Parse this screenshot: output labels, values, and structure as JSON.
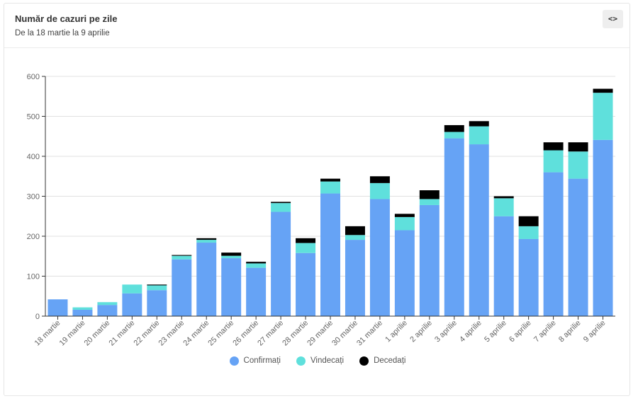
{
  "header": {
    "title": "Număr de cazuri pe zile",
    "subtitle": "De la 18 martie la 9 aprilie",
    "embed_label": "<>"
  },
  "colors": {
    "confirmati": "#66a3f5",
    "vindecati": "#5fe0dc",
    "decedati": "#000000",
    "grid": "#e0e0e0",
    "axis": "#333333"
  },
  "chart_data": {
    "type": "bar",
    "stacked": true,
    "title": "Număr de cazuri pe zile",
    "subtitle": "De la 18 martie la 9 aprilie",
    "xlabel": "",
    "ylabel": "",
    "ylim": [
      0,
      600
    ],
    "yticks": [
      0,
      100,
      200,
      300,
      400,
      500,
      600
    ],
    "grid": true,
    "legend_position": "bottom",
    "categories": [
      "18 martie",
      "19 martie",
      "20 martie",
      "21 martie",
      "22 martie",
      "23 martie",
      "24 martie",
      "25 martie",
      "26 martie",
      "27 martie",
      "28 martie",
      "29 martie",
      "30 martie",
      "31 martie",
      "1 aprilie",
      "2 aprilie",
      "3 aprilie",
      "4 aprilie",
      "5 aprilie",
      "6 aprilie",
      "7 aprilie",
      "8 aprilie",
      "9 aprilie"
    ],
    "series": [
      {
        "name": "Confirmați",
        "values": [
          42,
          16,
          28,
          57,
          65,
          142,
          184,
          145,
          121,
          261,
          158,
          307,
          191,
          293,
          215,
          278,
          445,
          430,
          250,
          193,
          360,
          344,
          441
        ]
      },
      {
        "name": "Vindecați",
        "values": [
          0,
          6,
          7,
          22,
          12,
          9,
          7,
          6,
          11,
          22,
          25,
          30,
          12,
          40,
          33,
          15,
          16,
          45,
          45,
          32,
          55,
          68,
          118
        ]
      },
      {
        "name": "Decedați",
        "values": [
          0,
          0,
          0,
          0,
          2,
          2,
          4,
          8,
          4,
          3,
          12,
          7,
          22,
          17,
          8,
          22,
          17,
          13,
          5,
          25,
          20,
          23,
          10
        ]
      }
    ]
  }
}
